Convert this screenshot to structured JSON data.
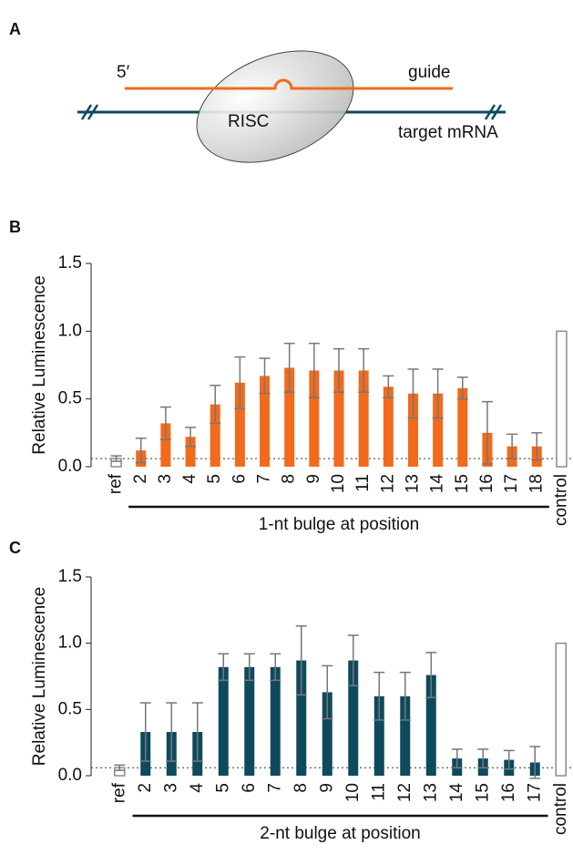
{
  "diagram": {
    "panel": "A",
    "five_prime": "5′",
    "guide": "guide",
    "risc": "RISC",
    "target": "target mRNA"
  },
  "chart_data": [
    {
      "type": "bar",
      "panel": "B",
      "ylabel": "Relative Luminescence",
      "xlabel": "1-nt bulge at position",
      "categories": [
        "ref",
        "2",
        "3",
        "4",
        "5",
        "6",
        "7",
        "8",
        "9",
        "10",
        "11",
        "12",
        "13",
        "14",
        "15",
        "16",
        "17",
        "18",
        "control"
      ],
      "values": [
        0.06,
        0.12,
        0.32,
        0.22,
        0.46,
        0.62,
        0.67,
        0.73,
        0.71,
        0.71,
        0.71,
        0.59,
        0.54,
        0.54,
        0.58,
        0.25,
        0.15,
        0.15,
        1.0
      ],
      "errors": [
        0.02,
        0.09,
        0.12,
        0.07,
        0.14,
        0.19,
        0.13,
        0.18,
        0.2,
        0.16,
        0.16,
        0.08,
        0.18,
        0.18,
        0.08,
        0.23,
        0.09,
        0.1,
        null
      ],
      "colors": [
        "#ffffff",
        "#f26a1b",
        "#f26a1b",
        "#f26a1b",
        "#f26a1b",
        "#f26a1b",
        "#f26a1b",
        "#f26a1b",
        "#f26a1b",
        "#f26a1b",
        "#f26a1b",
        "#f26a1b",
        "#f26a1b",
        "#f26a1b",
        "#f26a1b",
        "#f26a1b",
        "#f26a1b",
        "#f26a1b",
        "#ffffff"
      ],
      "edge_color": "#8a8a8a",
      "error_color": "#777777",
      "ref_line": 0.06,
      "ylim": [
        0,
        1.5
      ],
      "yticks": [
        {
          "value": 0,
          "label": "0.0"
        },
        0.5,
        {
          "value": 1,
          "label": "1.0"
        },
        1.5
      ]
    },
    {
      "type": "bar",
      "panel": "C",
      "ylabel": "Relative Luminescence",
      "xlabel": "2-nt bulge at position",
      "categories": [
        "ref",
        "2",
        "3",
        "4",
        "5",
        "6",
        "7",
        "8",
        "9",
        "10",
        "11",
        "12",
        "13",
        "14",
        "15",
        "16",
        "17",
        "control"
      ],
      "values": [
        0.06,
        0.33,
        0.33,
        0.33,
        0.82,
        0.82,
        0.82,
        0.87,
        0.63,
        0.87,
        0.6,
        0.6,
        0.76,
        0.13,
        0.13,
        0.12,
        0.1,
        1.0
      ],
      "errors": [
        0.02,
        0.22,
        0.22,
        0.22,
        0.1,
        0.1,
        0.1,
        0.26,
        0.2,
        0.19,
        0.18,
        0.18,
        0.17,
        0.07,
        0.07,
        0.07,
        0.12,
        null
      ],
      "colors": [
        "#ffffff",
        "#0e4a5e",
        "#0e4a5e",
        "#0e4a5e",
        "#0e4a5e",
        "#0e4a5e",
        "#0e4a5e",
        "#0e4a5e",
        "#0e4a5e",
        "#0e4a5e",
        "#0e4a5e",
        "#0e4a5e",
        "#0e4a5e",
        "#0e4a5e",
        "#0e4a5e",
        "#0e4a5e",
        "#0e4a5e",
        "#ffffff"
      ],
      "edge_color": "#8a8a8a",
      "error_color": "#777777",
      "ref_line": 0.06,
      "ylim": [
        0,
        1.5
      ],
      "yticks": [
        {
          "value": 0,
          "label": "0.0"
        },
        0.5,
        {
          "value": 1,
          "label": "1.0"
        },
        1.5
      ]
    }
  ]
}
